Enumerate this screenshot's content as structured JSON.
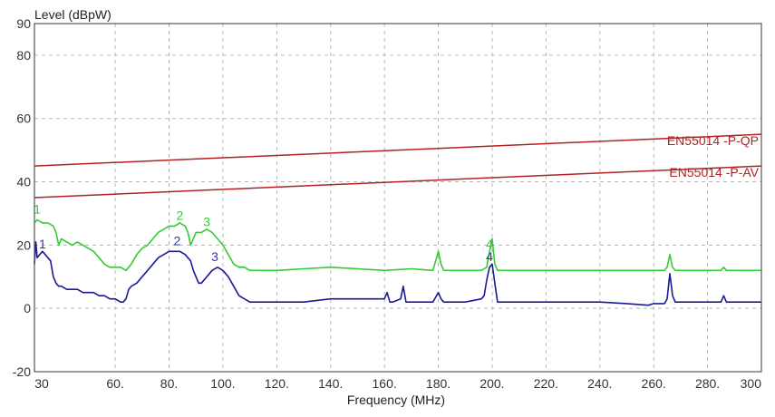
{
  "chart_data": {
    "type": "line",
    "title": "",
    "xlabel": "Frequency (MHz)",
    "ylabel": "Level (dBpW)",
    "xlim": [
      30,
      300
    ],
    "ylim": [
      -20,
      90
    ],
    "grid": true,
    "x_ticks": [
      {
        "value": 30,
        "label": "30"
      },
      {
        "value": 60,
        "label": "60."
      },
      {
        "value": 80,
        "label": "80."
      },
      {
        "value": 100,
        "label": "100."
      },
      {
        "value": 120,
        "label": "120."
      },
      {
        "value": 140,
        "label": "140."
      },
      {
        "value": 160,
        "label": "160."
      },
      {
        "value": 180,
        "label": "180."
      },
      {
        "value": 200,
        "label": "200."
      },
      {
        "value": 220,
        "label": "220."
      },
      {
        "value": 240,
        "label": "240."
      },
      {
        "value": 260,
        "label": "260."
      },
      {
        "value": 280,
        "label": "280."
      },
      {
        "value": 300,
        "label": "300"
      }
    ],
    "y_ticks": [
      {
        "value": 90,
        "label": "90"
      },
      {
        "value": 80,
        "label": "80"
      },
      {
        "value": 60,
        "label": "60"
      },
      {
        "value": 40,
        "label": "40"
      },
      {
        "value": 20,
        "label": "20"
      },
      {
        "value": 0,
        "label": "0"
      },
      {
        "value": -20,
        "label": "-20"
      }
    ],
    "limits": [
      {
        "name": "EN55014 -P-QP",
        "color": "#b22222",
        "x": [
          30,
          300
        ],
        "y": [
          45,
          55
        ]
      },
      {
        "name": "EN55014 -P-AV",
        "color": "#b22222",
        "x": [
          30,
          300
        ],
        "y": [
          35,
          45
        ]
      }
    ],
    "series": [
      {
        "color": "#33cc33",
        "x": [
          30,
          31,
          33,
          35,
          37,
          38,
          39,
          40,
          42,
          44,
          46,
          48,
          50,
          52,
          54,
          56,
          58,
          60,
          62,
          64,
          66,
          68,
          70,
          72,
          74,
          76,
          78,
          80,
          82,
          84,
          86,
          87,
          88,
          89,
          90,
          92,
          94,
          96,
          98,
          100,
          102,
          104,
          106,
          108,
          110,
          120,
          130,
          140,
          150,
          160,
          170,
          178,
          180,
          181,
          182,
          184,
          190,
          196,
          198,
          199,
          200,
          201,
          202,
          204,
          210,
          220,
          230,
          240,
          250,
          260,
          264,
          265,
          266,
          267,
          268,
          270,
          280,
          285,
          286,
          287,
          290,
          300
        ],
        "y": [
          27,
          28,
          27,
          27,
          26,
          24,
          20,
          22,
          21,
          20,
          21,
          20,
          19,
          18,
          16,
          14,
          13,
          13,
          13,
          12,
          14,
          17,
          19,
          20,
          22,
          24,
          25,
          26,
          26,
          27,
          26,
          24,
          20,
          22,
          24,
          24,
          25,
          24,
          22,
          20,
          17,
          14,
          13,
          13,
          12,
          12,
          12.5,
          13,
          12.5,
          12,
          12.5,
          12,
          18,
          14,
          12,
          12,
          12,
          12,
          13,
          18,
          22,
          14,
          12,
          12,
          12,
          12,
          12,
          12,
          12,
          12,
          12,
          13,
          17,
          13,
          12,
          12,
          12,
          12,
          13,
          12,
          12,
          12
        ]
      },
      {
        "color": "#1a1a99",
        "x": [
          30,
          30.5,
          31,
          32,
          33,
          34,
          36,
          37,
          38,
          39,
          40,
          42,
          44,
          46,
          48,
          50,
          52,
          54,
          56,
          58,
          60,
          62,
          63,
          64,
          65,
          66,
          68,
          70,
          72,
          74,
          76,
          78,
          80,
          82,
          84,
          86,
          88,
          89,
          90,
          91,
          92,
          94,
          96,
          98,
          100,
          102,
          104,
          106,
          108,
          110,
          120,
          130,
          140,
          150,
          160,
          161,
          162,
          163,
          166,
          167,
          168,
          170,
          178,
          180,
          181,
          182,
          184,
          190,
          196,
          197,
          198,
          199,
          200,
          201,
          202,
          204,
          210,
          220,
          230,
          240,
          250,
          258,
          260,
          264,
          265,
          266,
          267,
          268,
          270,
          280,
          285,
          286,
          287,
          290,
          300
        ],
        "y": [
          14,
          21,
          16,
          17,
          18,
          17,
          15,
          10,
          8,
          7,
          7,
          6,
          6,
          6,
          5,
          5,
          5,
          4,
          4,
          3,
          3,
          2,
          2,
          3,
          6,
          7,
          8,
          10,
          12,
          14,
          16,
          17,
          18,
          18,
          18,
          17,
          15,
          12,
          10,
          8,
          8,
          10,
          12,
          13,
          12,
          10,
          7,
          4,
          3,
          2,
          2,
          2,
          3,
          3,
          3,
          5,
          2,
          2,
          3,
          7,
          2,
          2,
          2,
          5,
          3,
          2,
          2,
          2,
          3,
          4,
          9,
          13,
          14,
          8,
          2,
          2,
          2,
          2,
          2,
          2,
          1.5,
          1,
          1.5,
          1.5,
          3,
          11,
          4,
          2,
          2,
          2,
          2,
          4,
          2,
          2,
          2
        ]
      }
    ],
    "markers": [
      {
        "label": "1",
        "x": 31,
        "y": 30,
        "color": "#33cc33"
      },
      {
        "label": "2",
        "x": 84,
        "y": 28,
        "color": "#33cc33"
      },
      {
        "label": "3",
        "x": 94,
        "y": 26,
        "color": "#33cc33"
      },
      {
        "label": "4",
        "x": 199,
        "y": 19,
        "color": "#33cc33"
      },
      {
        "label": "1",
        "x": 33,
        "y": 19,
        "color": "#3333bb"
      },
      {
        "label": "2",
        "x": 83,
        "y": 20,
        "color": "#3333bb"
      },
      {
        "label": "3",
        "x": 97,
        "y": 15,
        "color": "#3333bb"
      },
      {
        "label": "4",
        "x": 199,
        "y": 15,
        "color": "#3333bb"
      }
    ]
  }
}
